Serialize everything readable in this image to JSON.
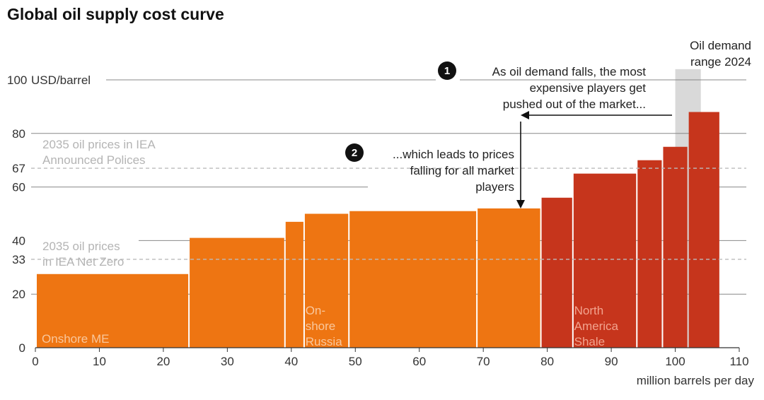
{
  "chart_data": {
    "type": "bar",
    "title": "Global oil supply cost curve",
    "ylabel": "USD/barrel",
    "xlabel": "million barrels per day",
    "xlim": [
      0,
      110
    ],
    "ylim": [
      0,
      100
    ],
    "xticks": [
      0,
      10,
      20,
      30,
      40,
      50,
      60,
      70,
      80,
      90,
      100,
      110
    ],
    "yticks": [
      0,
      20,
      40,
      60,
      80,
      100
    ],
    "extra_yticks": [
      33,
      67
    ],
    "segments": [
      {
        "x0": 0,
        "x1": 24,
        "cost": 27.5,
        "group": "orange"
      },
      {
        "x0": 24,
        "x1": 39,
        "cost": 41,
        "group": "orange"
      },
      {
        "x0": 39,
        "x1": 42,
        "cost": 47,
        "group": "orange"
      },
      {
        "x0": 42,
        "x1": 49,
        "cost": 50,
        "group": "orange"
      },
      {
        "x0": 49,
        "x1": 69,
        "cost": 51,
        "group": "orange"
      },
      {
        "x0": 69,
        "x1": 79,
        "cost": 52,
        "group": "orange"
      },
      {
        "x0": 79,
        "x1": 84,
        "cost": 56,
        "group": "red"
      },
      {
        "x0": 84,
        "x1": 94,
        "cost": 65,
        "group": "red"
      },
      {
        "x0": 94,
        "x1": 98,
        "cost": 70,
        "group": "red"
      },
      {
        "x0": 98,
        "x1": 102,
        "cost": 75,
        "group": "red"
      },
      {
        "x0": 102,
        "x1": 107,
        "cost": 88,
        "group": "red"
      }
    ],
    "bar_labels": [
      {
        "lines": [
          "Onshore ME"
        ],
        "x": 1,
        "style": "light-orange"
      },
      {
        "lines": [
          "On-",
          "shore",
          "Russia"
        ],
        "x": 42.2,
        "style": "light-orange"
      },
      {
        "lines": [
          "North",
          "America",
          "Shale"
        ],
        "x": 84.2,
        "style": "light-red"
      }
    ],
    "reference_lines": [
      {
        "value": 67,
        "lines": [
          "2035 oil prices in IEA",
          "Announced Polices"
        ]
      },
      {
        "value": 33,
        "lines": [
          "2035 oil prices",
          "in IEA Net Zero"
        ]
      }
    ],
    "demand_range": {
      "x0": 100,
      "x1": 104,
      "y_top": 104,
      "lines": [
        "Oil demand",
        "range 2024"
      ]
    },
    "annotations": [
      {
        "badge": "1",
        "lines": [
          "As oil demand falls, the most",
          "expensive players get",
          "pushed out of the market..."
        ]
      },
      {
        "badge": "2",
        "lines": [
          "...which leads to prices",
          "falling for all market",
          "players"
        ]
      }
    ]
  },
  "colors": {
    "orange": "#ee7512",
    "red": "#c6351c",
    "light_orange": "#f9c79c",
    "light_red": "#f2a38e",
    "grid": "#888888",
    "dashed": "#bbbbbb",
    "range": "#d9d9d9",
    "axis": "#333333",
    "badge": "#111111"
  }
}
